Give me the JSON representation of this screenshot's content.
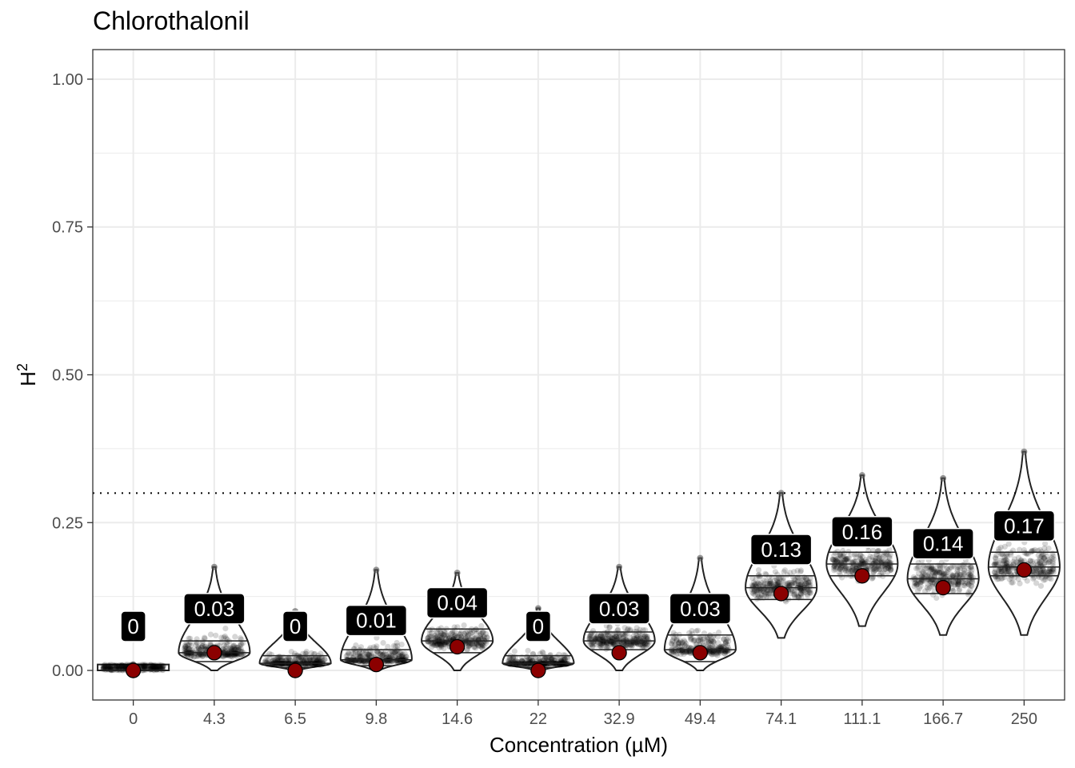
{
  "chart_data": {
    "type": "violin",
    "title": "Chlorothalonil",
    "xlabel": "Concentration (µM)",
    "ylabel": "H",
    "ylabel_superscript": "2",
    "categories": [
      "0",
      "4.3",
      "6.5",
      "9.8",
      "14.6",
      "22",
      "32.9",
      "49.4",
      "74.1",
      "111.1",
      "166.7",
      "250"
    ],
    "values": [
      0,
      0.03,
      0,
      0.01,
      0.04,
      0,
      0.03,
      0.03,
      0.13,
      0.16,
      0.14,
      0.17
    ],
    "data_labels": [
      "0",
      "0.03",
      "0",
      "0.01",
      "0.04",
      "0",
      "0.03",
      "0.03",
      "0.13",
      "0.16",
      "0.14",
      "0.17"
    ],
    "distributions": [
      {
        "min": 0.0,
        "max": 0.01,
        "q1": 0.0,
        "median": 0.0,
        "q3": 0.0
      },
      {
        "min": 0.0,
        "max": 0.175,
        "q1": 0.015,
        "median": 0.03,
        "q3": 0.05
      },
      {
        "min": 0.0,
        "max": 0.1,
        "q1": 0.005,
        "median": 0.012,
        "q3": 0.025
      },
      {
        "min": 0.0,
        "max": 0.17,
        "q1": 0.008,
        "median": 0.018,
        "q3": 0.035
      },
      {
        "min": 0.0,
        "max": 0.165,
        "q1": 0.03,
        "median": 0.05,
        "q3": 0.07
      },
      {
        "min": 0.0,
        "max": 0.105,
        "q1": 0.005,
        "median": 0.012,
        "q3": 0.025
      },
      {
        "min": 0.0,
        "max": 0.175,
        "q1": 0.035,
        "median": 0.05,
        "q3": 0.065
      },
      {
        "min": 0.0,
        "max": 0.19,
        "q1": 0.015,
        "median": 0.035,
        "q3": 0.06
      },
      {
        "min": 0.055,
        "max": 0.3,
        "q1": 0.12,
        "median": 0.14,
        "q3": 0.16
      },
      {
        "min": 0.075,
        "max": 0.33,
        "q1": 0.16,
        "median": 0.18,
        "q3": 0.2
      },
      {
        "min": 0.06,
        "max": 0.325,
        "q1": 0.13,
        "median": 0.155,
        "q3": 0.18
      },
      {
        "min": 0.06,
        "max": 0.37,
        "q1": 0.16,
        "median": 0.175,
        "q3": 0.2
      }
    ],
    "yticks": [
      0,
      0.25,
      0.5,
      0.75,
      1.0
    ],
    "ytick_labels": [
      "0.00",
      "0.25",
      "0.50",
      "0.75",
      "1.00"
    ],
    "ylim": [
      -0.05,
      1.05
    ],
    "reference_line": {
      "y": 0.3,
      "style": "dotted"
    },
    "grid": true,
    "legend": "none",
    "colors": {
      "mean_point": "#8b0000",
      "label_bg": "#000000",
      "label_text": "#ffffff",
      "jitter_points": "#000000",
      "grid": "#ebebeb",
      "outline": "#222222"
    }
  }
}
